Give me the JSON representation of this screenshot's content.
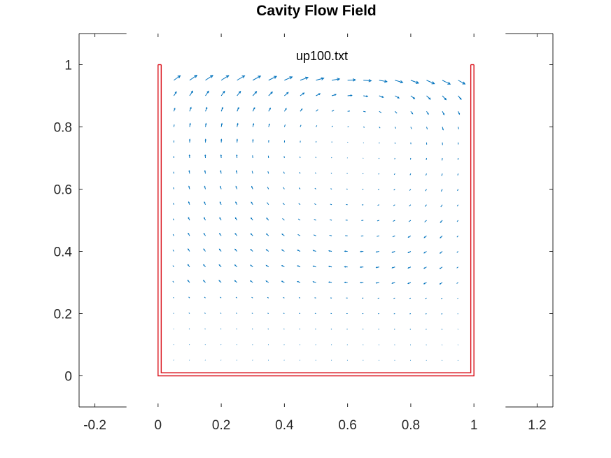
{
  "chart_data": {
    "type": "quiver",
    "title": "Cavity Flow Field",
    "xlabel": "",
    "ylabel": "",
    "annotation": "up100.txt",
    "xlim": [
      -0.25,
      1.25
    ],
    "ylim": [
      -0.1,
      1.1
    ],
    "xticks": [
      -0.2,
      0,
      0.2,
      0.4,
      0.6,
      0.8,
      1,
      1.2
    ],
    "xtick_labels": [
      "-0.2",
      "0",
      "0.2",
      "0.4",
      "0.6",
      "0.8",
      "1",
      "1.2"
    ],
    "yticks": [
      0,
      0.2,
      0.4,
      0.6,
      0.8,
      1
    ],
    "ytick_labels": [
      "0",
      "0.2",
      "0.4",
      "0.6",
      "0.8",
      "1"
    ],
    "grid": false,
    "vortex_center": [
      0.62,
      0.74
    ],
    "lid_velocity": 1.0,
    "grid_spacing": 0.05,
    "colors": {
      "arrows": "#0072bd",
      "cavity": "#d9111a",
      "axes": "#262626"
    },
    "cavity_outer": [
      [
        0,
        1
      ],
      [
        0,
        0
      ],
      [
        1,
        0
      ],
      [
        1,
        1
      ]
    ],
    "cavity_inner": [
      [
        0.01,
        1
      ],
      [
        0.01,
        0.01
      ],
      [
        0.99,
        0.01
      ],
      [
        0.99,
        1
      ]
    ]
  }
}
